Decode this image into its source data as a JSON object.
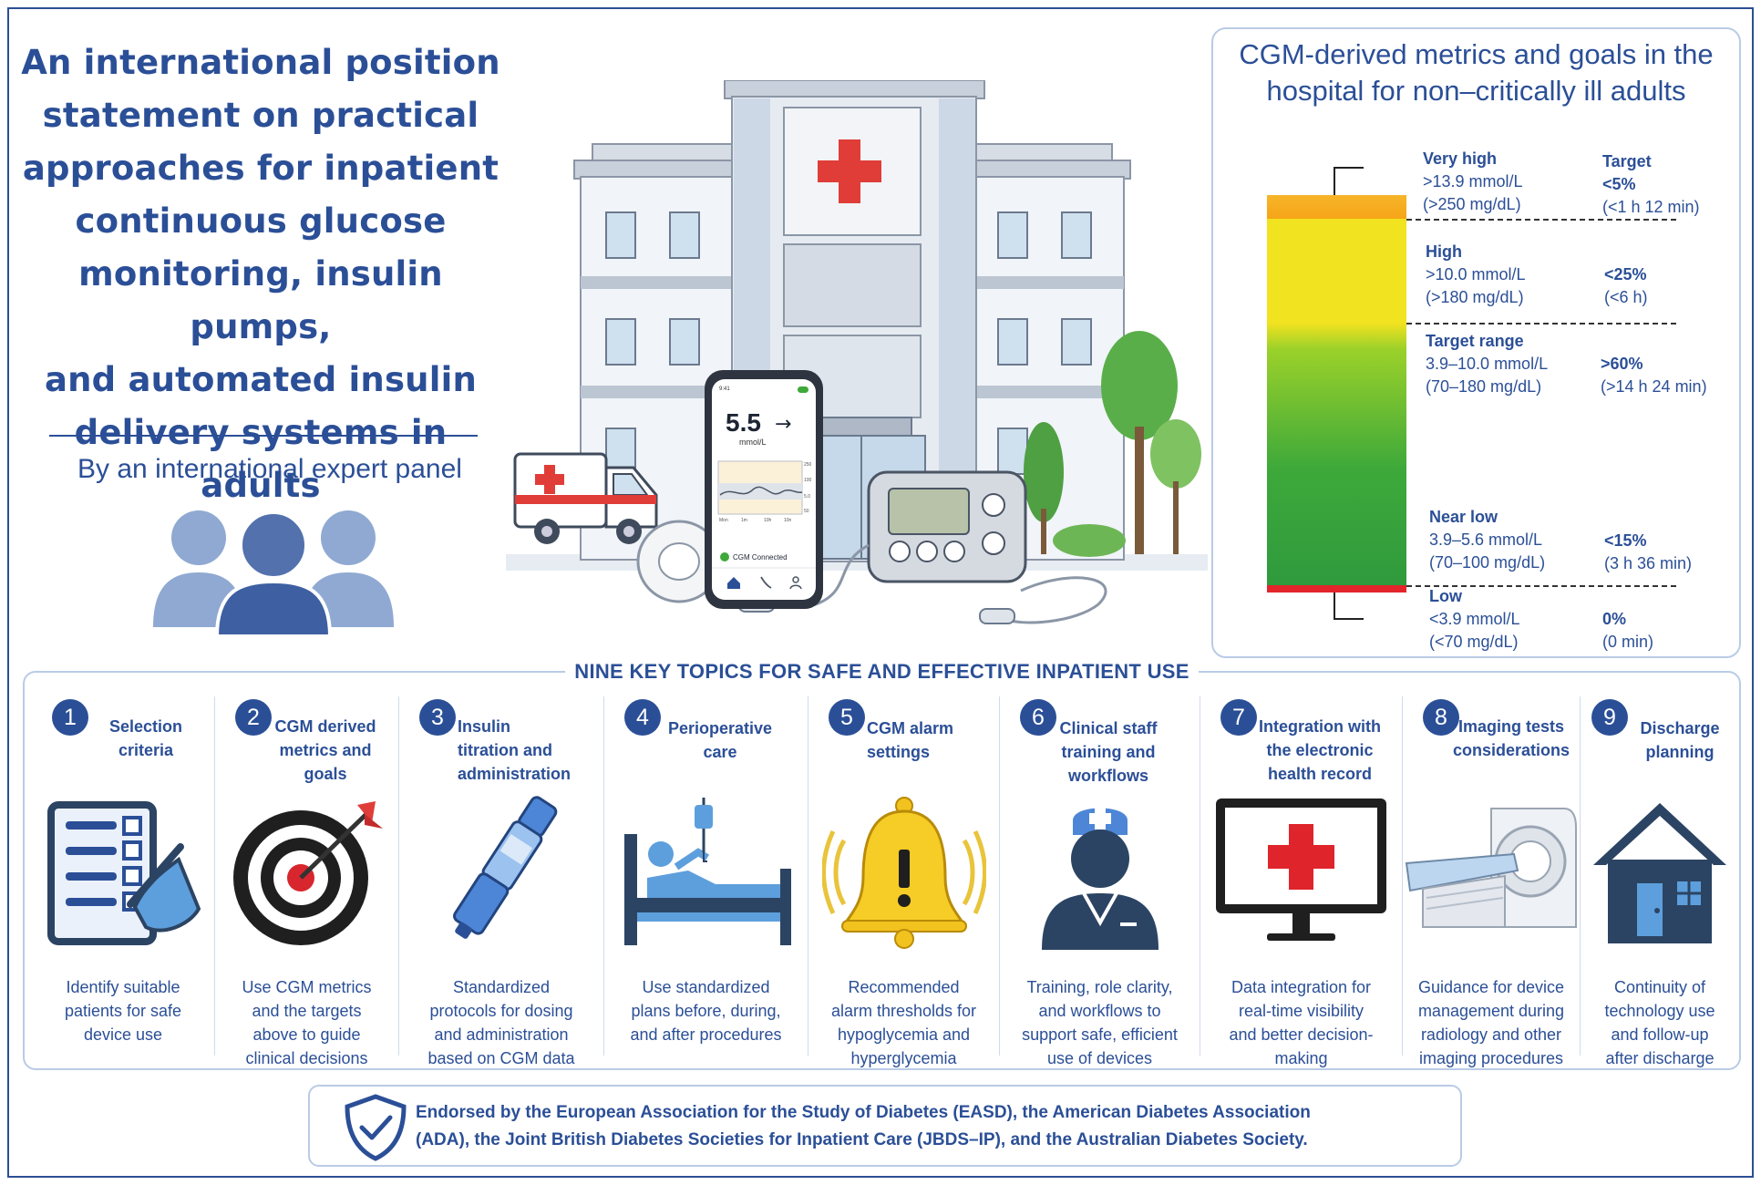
{
  "title": {
    "lines": [
      "An international position",
      "statement on practical",
      "approaches for inpatient",
      "continuous glucose",
      "monitoring, insulin pumps,",
      "and automated insulin",
      "delivery systems in adults"
    ],
    "byline": "By an international expert panel"
  },
  "phone": {
    "time": "9:41",
    "glucose_value": "5.5",
    "trend_arrow": "→",
    "unit": "mmol/L",
    "axis_labels": [
      "250",
      "100",
      "5.0",
      "50"
    ],
    "time_labels": [
      "Mon",
      "1m",
      "10h",
      "10n"
    ],
    "status": "CGM Connected"
  },
  "metrics": {
    "title_line1": "CGM-derived metrics and goals in the",
    "title_line2": "hospital for non–critically ill adults",
    "target_header": "Target",
    "rows": [
      {
        "name": "Very high",
        "mmol": ">13.9 mmol/L",
        "mgdl": "(>250 mg/dL)",
        "goal": "<5%",
        "time": "(<1 h 12 min)"
      },
      {
        "name": "High",
        "mmol": ">10.0 mmol/L",
        "mgdl": "(>180 mg/dL)",
        "goal": "<25%",
        "time": "(<6 h)"
      },
      {
        "name": "Target range",
        "mmol": "3.9–10.0 mmol/L",
        "mgdl": "(70–180 mg/dL)",
        "goal": ">60%",
        "time": "(>14 h 24 min)"
      },
      {
        "name": "Near low",
        "mmol": "3.9–5.6 mmol/L",
        "mgdl": "(70–100 mg/dL)",
        "goal": "<15%",
        "time": "(3 h 36 min)"
      },
      {
        "name": "Low",
        "mmol": "<3.9 mmol/L",
        "mgdl": "(<70 mg/dL)",
        "goal": "0%",
        "time": "(0 min)"
      }
    ],
    "colors": {
      "very_high": "#f6a417",
      "high": "#f1e31f",
      "target": "#3ea93a",
      "low": "#e3242b"
    }
  },
  "topics": {
    "heading": "NINE KEY TOPICS FOR SAFE AND EFFECTIVE INPATIENT USE",
    "items": [
      {
        "num": "1",
        "title": [
          "Selection",
          "criteria"
        ],
        "text": [
          "Identify suitable",
          "patients for safe",
          "device use"
        ],
        "icon": "checklist-icon"
      },
      {
        "num": "2",
        "title": [
          "CGM  derived",
          "metrics and",
          "goals"
        ],
        "text": [
          "Use CGM metrics",
          "and the targets",
          "above to guide",
          "clinical decisions"
        ],
        "icon": "target-icon"
      },
      {
        "num": "3",
        "title": [
          "Insulin",
          "titration and",
          "administration"
        ],
        "text": [
          "Standardized",
          "protocols for dosing",
          "and administration",
          "based on CGM data"
        ],
        "icon": "insulin-pen-icon"
      },
      {
        "num": "4",
        "title": [
          "Perioperative",
          "care"
        ],
        "text": [
          "Use standardized",
          "plans before, during,",
          "and after procedures"
        ],
        "icon": "hospital-bed-icon"
      },
      {
        "num": "5",
        "title": [
          "CGM alarm",
          "settings"
        ],
        "text": [
          "Recommended",
          "alarm thresholds for",
          "hypoglycemia and",
          "hyperglycemia"
        ],
        "icon": "alarm-bell-icon"
      },
      {
        "num": "6",
        "title": [
          "Clinical staff",
          "training and",
          "workflows"
        ],
        "text": [
          "Training, role clarity,",
          "and workflows to",
          "support safe, efficient",
          "use of devices"
        ],
        "icon": "nurse-icon"
      },
      {
        "num": "7",
        "title": [
          "Integration with",
          "the electronic",
          "health record"
        ],
        "text": [
          "Data integration for",
          "real-time visibility",
          "and better decision-",
          "making"
        ],
        "icon": "monitor-cross-icon"
      },
      {
        "num": "8",
        "title": [
          "Imaging tests",
          "considerations"
        ],
        "text": [
          "Guidance for device",
          "management during",
          "radiology and other",
          "imaging procedures"
        ],
        "icon": "ct-scanner-icon"
      },
      {
        "num": "9",
        "title": [
          "Discharge",
          "planning"
        ],
        "text": [
          "Continuity of",
          "technology use",
          "and follow-up",
          "after discharge"
        ],
        "icon": "house-icon"
      }
    ]
  },
  "endorsement": {
    "line1": "Endorsed by the European Association for the Study of Diabetes (EASD), the American Diabetes Association",
    "line2": "(ADA), the Joint British Diabetes Societies for Inpatient Care (JBDS–IP), and the Australian Diabetes Society."
  }
}
